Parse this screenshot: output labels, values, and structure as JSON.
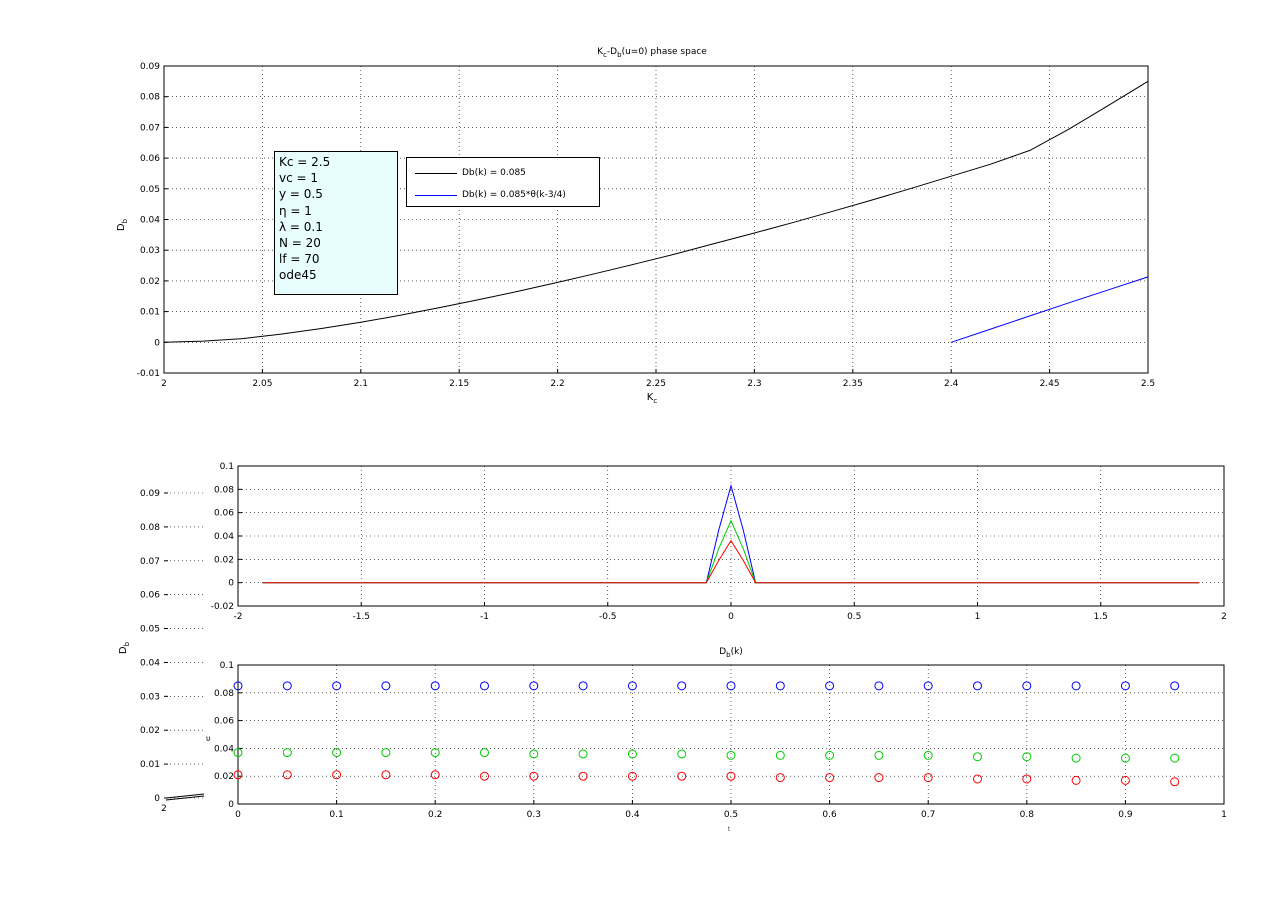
{
  "chart_data": [
    {
      "id": "phase",
      "type": "line",
      "title_parts": [
        "K",
        "c",
        "-D",
        "b",
        "(u=0) phase space"
      ],
      "xlabel_parts": [
        "K",
        "c"
      ],
      "ylabel_parts": [
        "D",
        "b"
      ],
      "xlim": [
        2,
        2.5
      ],
      "ylim": [
        -0.01,
        0.09
      ],
      "xticks": [
        "2",
        "2.05",
        "2.1",
        "2.15",
        "2.2",
        "2.25",
        "2.3",
        "2.35",
        "2.4",
        "2.45",
        "2.5"
      ],
      "yticks": [
        "-0.01",
        "0",
        "0.01",
        "0.02",
        "0.03",
        "0.04",
        "0.05",
        "0.06",
        "0.07",
        "0.08",
        "0.09"
      ],
      "grid": true,
      "legend_position": "upper-left",
      "series": [
        {
          "name": "Db(k) = 0.085",
          "color": "#000000",
          "x": [
            2.0,
            2.02,
            2.04,
            2.06,
            2.08,
            2.1,
            2.12,
            2.14,
            2.16,
            2.18,
            2.2,
            2.22,
            2.24,
            2.26,
            2.28,
            2.3,
            2.32,
            2.34,
            2.36,
            2.38,
            2.4,
            2.42,
            2.44,
            2.46,
            2.48,
            2.5
          ],
          "y": [
            0.0,
            0.0004,
            0.0012,
            0.0027,
            0.0045,
            0.0065,
            0.0088,
            0.0113,
            0.0139,
            0.0166,
            0.0195,
            0.0225,
            0.0256,
            0.0288,
            0.0322,
            0.0356,
            0.0391,
            0.0427,
            0.0464,
            0.0502,
            0.0541,
            0.058,
            0.0625,
            0.0695,
            0.0772,
            0.085
          ]
        },
        {
          "name": "Db(k) = 0.085*θ(k-3/4)",
          "color": "#0000ff",
          "x": [
            2.4,
            2.42,
            2.44,
            2.46,
            2.48,
            2.5
          ],
          "y": [
            0.0,
            0.0043,
            0.0086,
            0.0129,
            0.0171,
            0.0213
          ]
        }
      ]
    },
    {
      "id": "profile",
      "type": "line",
      "xlim": [
        -2,
        2
      ],
      "ylim": [
        -0.02,
        0.1
      ],
      "xticks": [
        "-2",
        "-1.5",
        "-1",
        "-0.5",
        "0",
        "0.5",
        "1",
        "1.5",
        "2"
      ],
      "yticks": [
        "-0.02",
        "0",
        "0.02",
        "0.04",
        "0.06",
        "0.08",
        "0.1"
      ],
      "grid": true,
      "series": [
        {
          "color": "#0000ff",
          "x": [
            -1.9,
            -0.1,
            -0.05,
            0,
            0.05,
            0.1,
            1.9
          ],
          "y": [
            0,
            0,
            0.045,
            0.083,
            0.045,
            0,
            0
          ]
        },
        {
          "color": "#00cc00",
          "x": [
            -1.9,
            -0.1,
            -0.05,
            0,
            0.05,
            0.1,
            1.9
          ],
          "y": [
            0,
            0,
            0.029,
            0.053,
            0.029,
            0,
            0
          ]
        },
        {
          "color": "#ff0000",
          "x": [
            -1.9,
            -0.1,
            -0.05,
            0,
            0.05,
            0.1,
            1.9
          ],
          "y": [
            0,
            0,
            0.019,
            0.036,
            0.019,
            0,
            0
          ]
        }
      ]
    },
    {
      "id": "dbk",
      "type": "scatter",
      "title_parts": [
        "D",
        "b",
        "(k)"
      ],
      "xlim": [
        0,
        1
      ],
      "ylim": [
        0,
        0.1
      ],
      "xticks": [
        "0",
        "0.1",
        "0.2",
        "0.3",
        "0.4",
        "0.5",
        "0.6",
        "0.7",
        "0.8",
        "0.9",
        "1"
      ],
      "yticks": [
        "0",
        "0.02",
        "0.04",
        "0.06",
        "0.08",
        "0.1"
      ],
      "grid": true,
      "series": [
        {
          "color": "#0000ff",
          "x": [
            0,
            0.05,
            0.1,
            0.15,
            0.2,
            0.25,
            0.3,
            0.35,
            0.4,
            0.45,
            0.5,
            0.55,
            0.6,
            0.65,
            0.7,
            0.75,
            0.8,
            0.85,
            0.9,
            0.95
          ],
          "y": [
            0.085,
            0.085,
            0.085,
            0.085,
            0.085,
            0.085,
            0.085,
            0.085,
            0.085,
            0.085,
            0.085,
            0.085,
            0.085,
            0.085,
            0.085,
            0.085,
            0.085,
            0.085,
            0.085,
            0.085
          ]
        },
        {
          "color": "#00cc00",
          "x": [
            0,
            0.05,
            0.1,
            0.15,
            0.2,
            0.25,
            0.3,
            0.35,
            0.4,
            0.45,
            0.5,
            0.55,
            0.6,
            0.65,
            0.7,
            0.75,
            0.8,
            0.85,
            0.9,
            0.95
          ],
          "y": [
            0.037,
            0.037,
            0.037,
            0.037,
            0.037,
            0.037,
            0.036,
            0.036,
            0.036,
            0.036,
            0.035,
            0.035,
            0.035,
            0.035,
            0.035,
            0.034,
            0.034,
            0.033,
            0.033,
            0.033
          ]
        },
        {
          "color": "#ff0000",
          "x": [
            0,
            0.05,
            0.1,
            0.15,
            0.2,
            0.25,
            0.3,
            0.35,
            0.4,
            0.45,
            0.5,
            0.55,
            0.6,
            0.65,
            0.7,
            0.75,
            0.8,
            0.85,
            0.9,
            0.95
          ],
          "y": [
            0.021,
            0.021,
            0.021,
            0.021,
            0.021,
            0.02,
            0.02,
            0.02,
            0.02,
            0.02,
            0.02,
            0.019,
            0.019,
            0.019,
            0.019,
            0.018,
            0.018,
            0.017,
            0.017,
            0.016
          ]
        }
      ]
    },
    {
      "id": "background-axes",
      "type": "line",
      "ylabel_parts": [
        "D",
        "b"
      ],
      "xlim": [
        2,
        2.5
      ],
      "ylim": [
        0,
        0.09
      ],
      "xticks": [
        "2"
      ],
      "yticks": [
        "0",
        "0.01",
        "0.02",
        "0.03",
        "0.04",
        "0.05",
        "0.06",
        "0.07",
        "0.08",
        "0.09"
      ],
      "grid": true
    }
  ],
  "annotations": {
    "params": [
      "Kc = 2.5",
      "vc = 1",
      "y = 0.5",
      "η = 1",
      "λ = 0.1",
      "N = 20",
      "lf = 70",
      "ode45"
    ],
    "dbk_xlabel_fragment": "t",
    "dbk_ylabel_fragment": "υ"
  }
}
